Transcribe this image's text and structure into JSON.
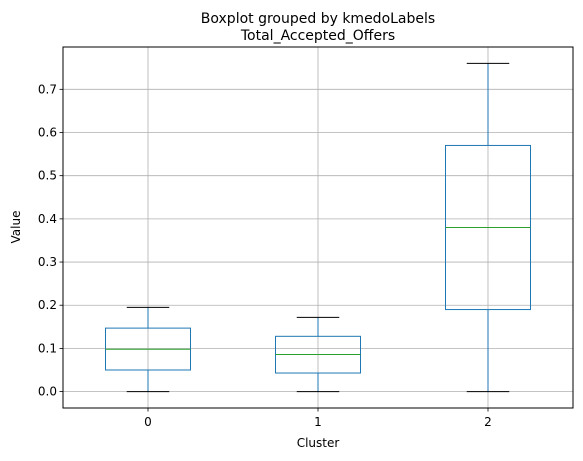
{
  "chart_data": {
    "type": "box",
    "suptitle": "Boxplot grouped by kmedoLabels",
    "title": "Total_Accepted_Offers",
    "xlabel": "Cluster",
    "ylabel": "Value",
    "categories": [
      "0",
      "1",
      "2"
    ],
    "boxes": [
      {
        "category": "0",
        "whisker_low": 0.0,
        "q1": 0.05,
        "median": 0.098,
        "q3": 0.147,
        "whisker_high": 0.195
      },
      {
        "category": "1",
        "whisker_low": 0.0,
        "q1": 0.043,
        "median": 0.086,
        "q3": 0.128,
        "whisker_high": 0.172
      },
      {
        "category": "2",
        "whisker_low": 0.0,
        "q1": 0.19,
        "median": 0.38,
        "q3": 0.57,
        "whisker_high": 0.76
      }
    ],
    "ylim": [
      -0.038,
      0.798
    ],
    "yticks": [
      0.0,
      0.1,
      0.2,
      0.3,
      0.4,
      0.5,
      0.6,
      0.7
    ],
    "ytick_labels": [
      "0.0",
      "0.1",
      "0.2",
      "0.3",
      "0.4",
      "0.5",
      "0.6",
      "0.7"
    ],
    "grid": true,
    "colors": {
      "box": "#1f77b4",
      "median": "#2ca02c",
      "cap": "#000000",
      "grid": "#b0b0b0"
    }
  }
}
